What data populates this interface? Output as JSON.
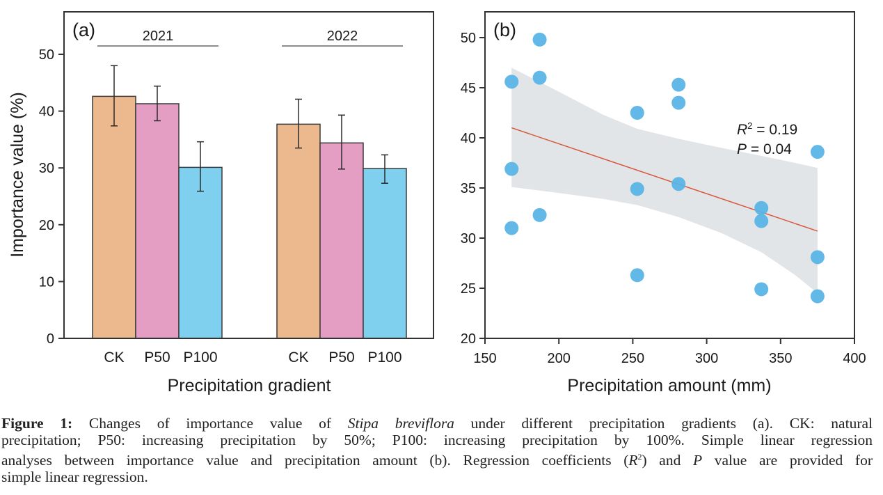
{
  "chart_data": [
    {
      "type": "bar",
      "panel_label": "(a)",
      "title": "",
      "xlabel": "Precipitation gradient",
      "ylabel": "Importance value (%)",
      "ylim": [
        0,
        56
      ],
      "yticks": [
        0,
        10,
        20,
        30,
        40,
        50
      ],
      "groups": [
        {
          "name": "2021",
          "categories": [
            "CK",
            "P50",
            "P100"
          ],
          "values": [
            42.6,
            41.3,
            30.1
          ],
          "error_upper": [
            48.0,
            44.4,
            34.6
          ],
          "error_lower": [
            37.4,
            38.3,
            25.9
          ]
        },
        {
          "name": "2022",
          "categories": [
            "CK",
            "P50",
            "P100"
          ],
          "values": [
            37.7,
            34.4,
            29.9
          ],
          "error_upper": [
            42.1,
            39.3,
            32.3
          ],
          "error_lower": [
            33.5,
            29.8,
            27.3
          ]
        }
      ],
      "colors": {
        "CK": "#ecb98e",
        "P50": "#e49ec4",
        "P100": "#7fd0ee"
      },
      "grid": false,
      "legend": "none"
    },
    {
      "type": "scatter",
      "panel_label": "(b)",
      "title": "",
      "xlabel": "Precipitation amount (mm)",
      "ylabel": "",
      "xlim": [
        150,
        400
      ],
      "ylim": [
        20,
        52
      ],
      "xticks": [
        150,
        200,
        250,
        300,
        350,
        400
      ],
      "yticks": [
        20,
        25,
        30,
        35,
        40,
        45,
        50
      ],
      "points": [
        {
          "x": 168,
          "y": 45.6
        },
        {
          "x": 168,
          "y": 36.9
        },
        {
          "x": 168,
          "y": 31.0
        },
        {
          "x": 187,
          "y": 49.8
        },
        {
          "x": 187,
          "y": 46.0
        },
        {
          "x": 187,
          "y": 32.3
        },
        {
          "x": 253,
          "y": 42.5
        },
        {
          "x": 253,
          "y": 34.9
        },
        {
          "x": 253,
          "y": 26.3
        },
        {
          "x": 281,
          "y": 45.3
        },
        {
          "x": 281,
          "y": 43.5
        },
        {
          "x": 281,
          "y": 35.4
        },
        {
          "x": 337,
          "y": 33.0
        },
        {
          "x": 337,
          "y": 31.7
        },
        {
          "x": 337,
          "y": 24.9
        },
        {
          "x": 375,
          "y": 38.6
        },
        {
          "x": 375,
          "y": 28.1
        },
        {
          "x": 375,
          "y": 24.2
        }
      ],
      "regression": {
        "x": [
          168,
          375
        ],
        "y": [
          41.0,
          30.7
        ]
      },
      "confidence_band": {
        "x": [
          168,
          200,
          230,
          253,
          281,
          310,
          337,
          360,
          375
        ],
        "upper": [
          47.0,
          44.6,
          42.3,
          40.9,
          39.9,
          39.0,
          38.2,
          37.5,
          37.0
        ],
        "lower": [
          35.1,
          34.5,
          33.9,
          33.3,
          32.1,
          30.5,
          28.6,
          26.3,
          24.5
        ]
      },
      "annotation": {
        "r2_label": "R",
        "r2_sup": "2",
        "r2_value": " = 0.19",
        "p_label": "P",
        "p_value": " = 0.04"
      },
      "colors": {
        "points": "#5ab4e5",
        "line": "#d9573a",
        "band": "#e1e5e8"
      },
      "grid": false,
      "legend": "none"
    }
  ],
  "caption": {
    "label": "Figure 1:",
    "line1_pre": " Changes of importance value of ",
    "species": "Stipa breviflora",
    "line1_post": " under different precipitation gradients (a). CK: natural",
    "line2": "precipitation; P50: increasing precipitation by 50%; P100: increasing precipitation by 100%. Simple linear regression",
    "line3_pre": "analyses between importance value and precipitation amount (b). Regression coefficients (",
    "line3_r": "R",
    "line3_sup": "2",
    "line3_mid": ") and ",
    "line3_p": "P",
    "line3_post": " value are provided for",
    "line4": "simple linear regression."
  }
}
